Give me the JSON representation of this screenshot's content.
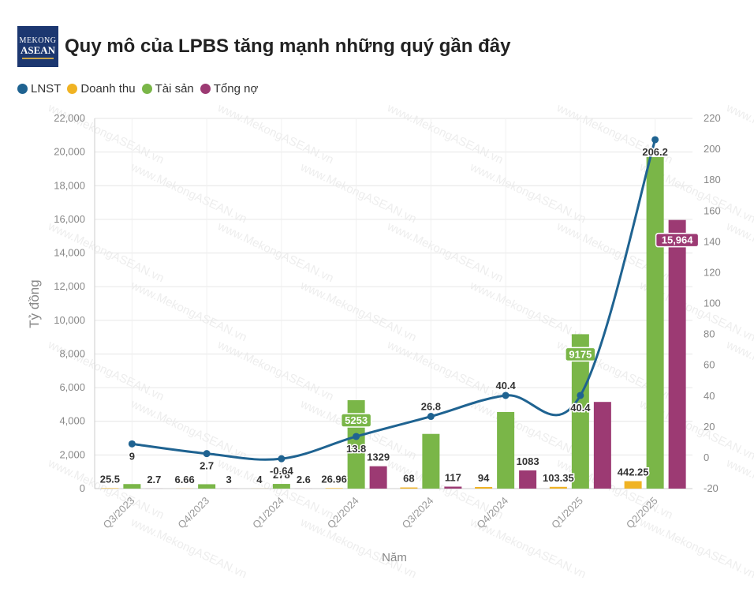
{
  "header": {
    "logo_line1": "MEKONG",
    "logo_line2": "ASEAN",
    "title": "Quy mô của LPBS tăng mạnh những quý gần đây"
  },
  "legend": [
    {
      "label": "LNST",
      "color": "#1f6391"
    },
    {
      "label": "Doanh thu",
      "color": "#f0b323"
    },
    {
      "label": "Tài sản",
      "color": "#7ab648"
    },
    {
      "label": "Tổng nợ",
      "color": "#9c3a73"
    }
  ],
  "watermark": "www.MekongASEAN.vn",
  "chart_data": {
    "type": "bar",
    "xlabel": "Năm",
    "ylabel": "Tỷ đồng",
    "ylim": [
      0,
      22000
    ],
    "y2lim": [
      -20,
      220
    ],
    "yticks": [
      0,
      2000,
      4000,
      6000,
      8000,
      10000,
      12000,
      14000,
      16000,
      18000,
      20000,
      22000
    ],
    "y2ticks": [
      -20,
      0,
      20,
      40,
      60,
      80,
      100,
      120,
      140,
      160,
      180,
      200,
      220
    ],
    "categories": [
      "Q3/2023",
      "Q4/2023",
      "Q1/2024",
      "Q2/2024",
      "Q3/2024",
      "Q4/2024",
      "Q1/2025",
      "Q2/2025"
    ],
    "grid": true,
    "legend_position": "top-left",
    "series": [
      {
        "name": "Doanh thu",
        "type": "bar",
        "axis": "left",
        "color": "#f0b323",
        "values": [
          25.5,
          6.66,
          4,
          26.96,
          68,
          94,
          103.35,
          442.25
        ],
        "labels": [
          "25.5",
          "6.66",
          "4",
          "26.96",
          "68",
          "94",
          "103.35",
          "442.25"
        ]
      },
      {
        "name": "Tài sản",
        "type": "bar",
        "axis": "left",
        "color": "#7ab648",
        "values": [
          270,
          260,
          278,
          5253,
          3250,
          4550,
          9175,
          19700
        ],
        "labels": [
          "",
          "",
          "278",
          "5253",
          "",
          "",
          "9175",
          ""
        ]
      },
      {
        "name": "Tổng nợ",
        "type": "bar",
        "axis": "left",
        "color": "#9c3a73",
        "values": [
          2.7,
          3,
          2.6,
          1329,
          117,
          1083,
          5150,
          15964
        ],
        "labels": [
          "2.7",
          "3",
          "2.6",
          "1329",
          "117",
          "1083",
          "",
          "15,964"
        ]
      },
      {
        "name": "LNST",
        "type": "line",
        "axis": "right",
        "color": "#1f6391",
        "values": [
          9,
          2.7,
          -0.64,
          13.8,
          26.8,
          40.4,
          40.4,
          206.2
        ],
        "labels": [
          "9",
          "2.7",
          "-0.64",
          "13.8",
          "26.8",
          "40.4",
          "40.4",
          "206.2"
        ]
      }
    ]
  }
}
